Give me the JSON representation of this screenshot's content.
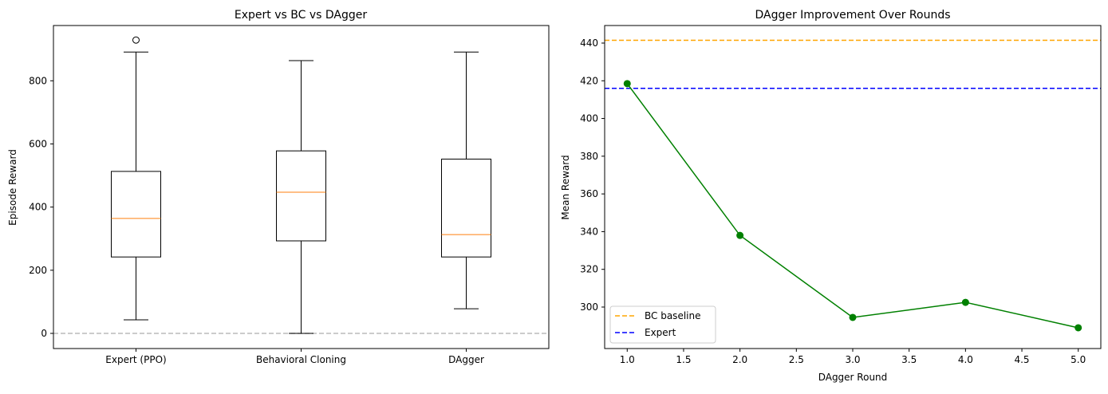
{
  "chart_data": [
    {
      "type": "box",
      "title": "Expert vs BC vs DAgger",
      "xlabel": "",
      "ylabel": "Episode Reward",
      "categories": [
        "Expert (PPO)",
        "Behavioral Cloning",
        "DAgger"
      ],
      "boxes": [
        {
          "whisker_low": 43,
          "q1": 242,
          "median": 364,
          "q3": 513,
          "whisker_high": 891,
          "outliers": [
            929
          ]
        },
        {
          "whisker_low": 0,
          "q1": 293,
          "median": 447,
          "q3": 578,
          "whisker_high": 864,
          "outliers": []
        },
        {
          "whisker_low": 78,
          "q1": 242,
          "median": 313,
          "q3": 552,
          "whisker_high": 891,
          "outliers": []
        }
      ],
      "yticks": [
        0,
        200,
        400,
        600,
        800
      ],
      "ylim": [
        -48,
        975
      ],
      "reference_line": {
        "y": 0,
        "color": "#bbbbbb",
        "style": "dashed"
      },
      "colors": {
        "box": "#000000",
        "median": "#ff7f0e"
      },
      "grid": false
    },
    {
      "type": "line",
      "title": "DAgger Improvement Over Rounds",
      "xlabel": "DAgger Round",
      "ylabel": "Mean Reward",
      "x": [
        1,
        2,
        3,
        4,
        5
      ],
      "series": [
        {
          "values": [
            418.5,
            338,
            294.5,
            302.5,
            289
          ],
          "color": "#008000",
          "marker": "circle"
        }
      ],
      "hlines": [
        {
          "name": "BC baseline",
          "y": 441.5,
          "color": "#ffa500",
          "style": "dashed"
        },
        {
          "name": "Expert",
          "y": 416,
          "color": "#0000ff",
          "style": "dashed"
        }
      ],
      "xticks": [
        "1.0",
        "1.5",
        "2.0",
        "2.5",
        "3.0",
        "3.5",
        "4.0",
        "4.5",
        "5.0"
      ],
      "yticks": [
        300,
        320,
        340,
        360,
        380,
        400,
        420,
        440
      ],
      "xlim": [
        0.8,
        5.2
      ],
      "ylim": [
        278,
        449.3
      ],
      "legend": "lower-left",
      "grid": false
    }
  ]
}
